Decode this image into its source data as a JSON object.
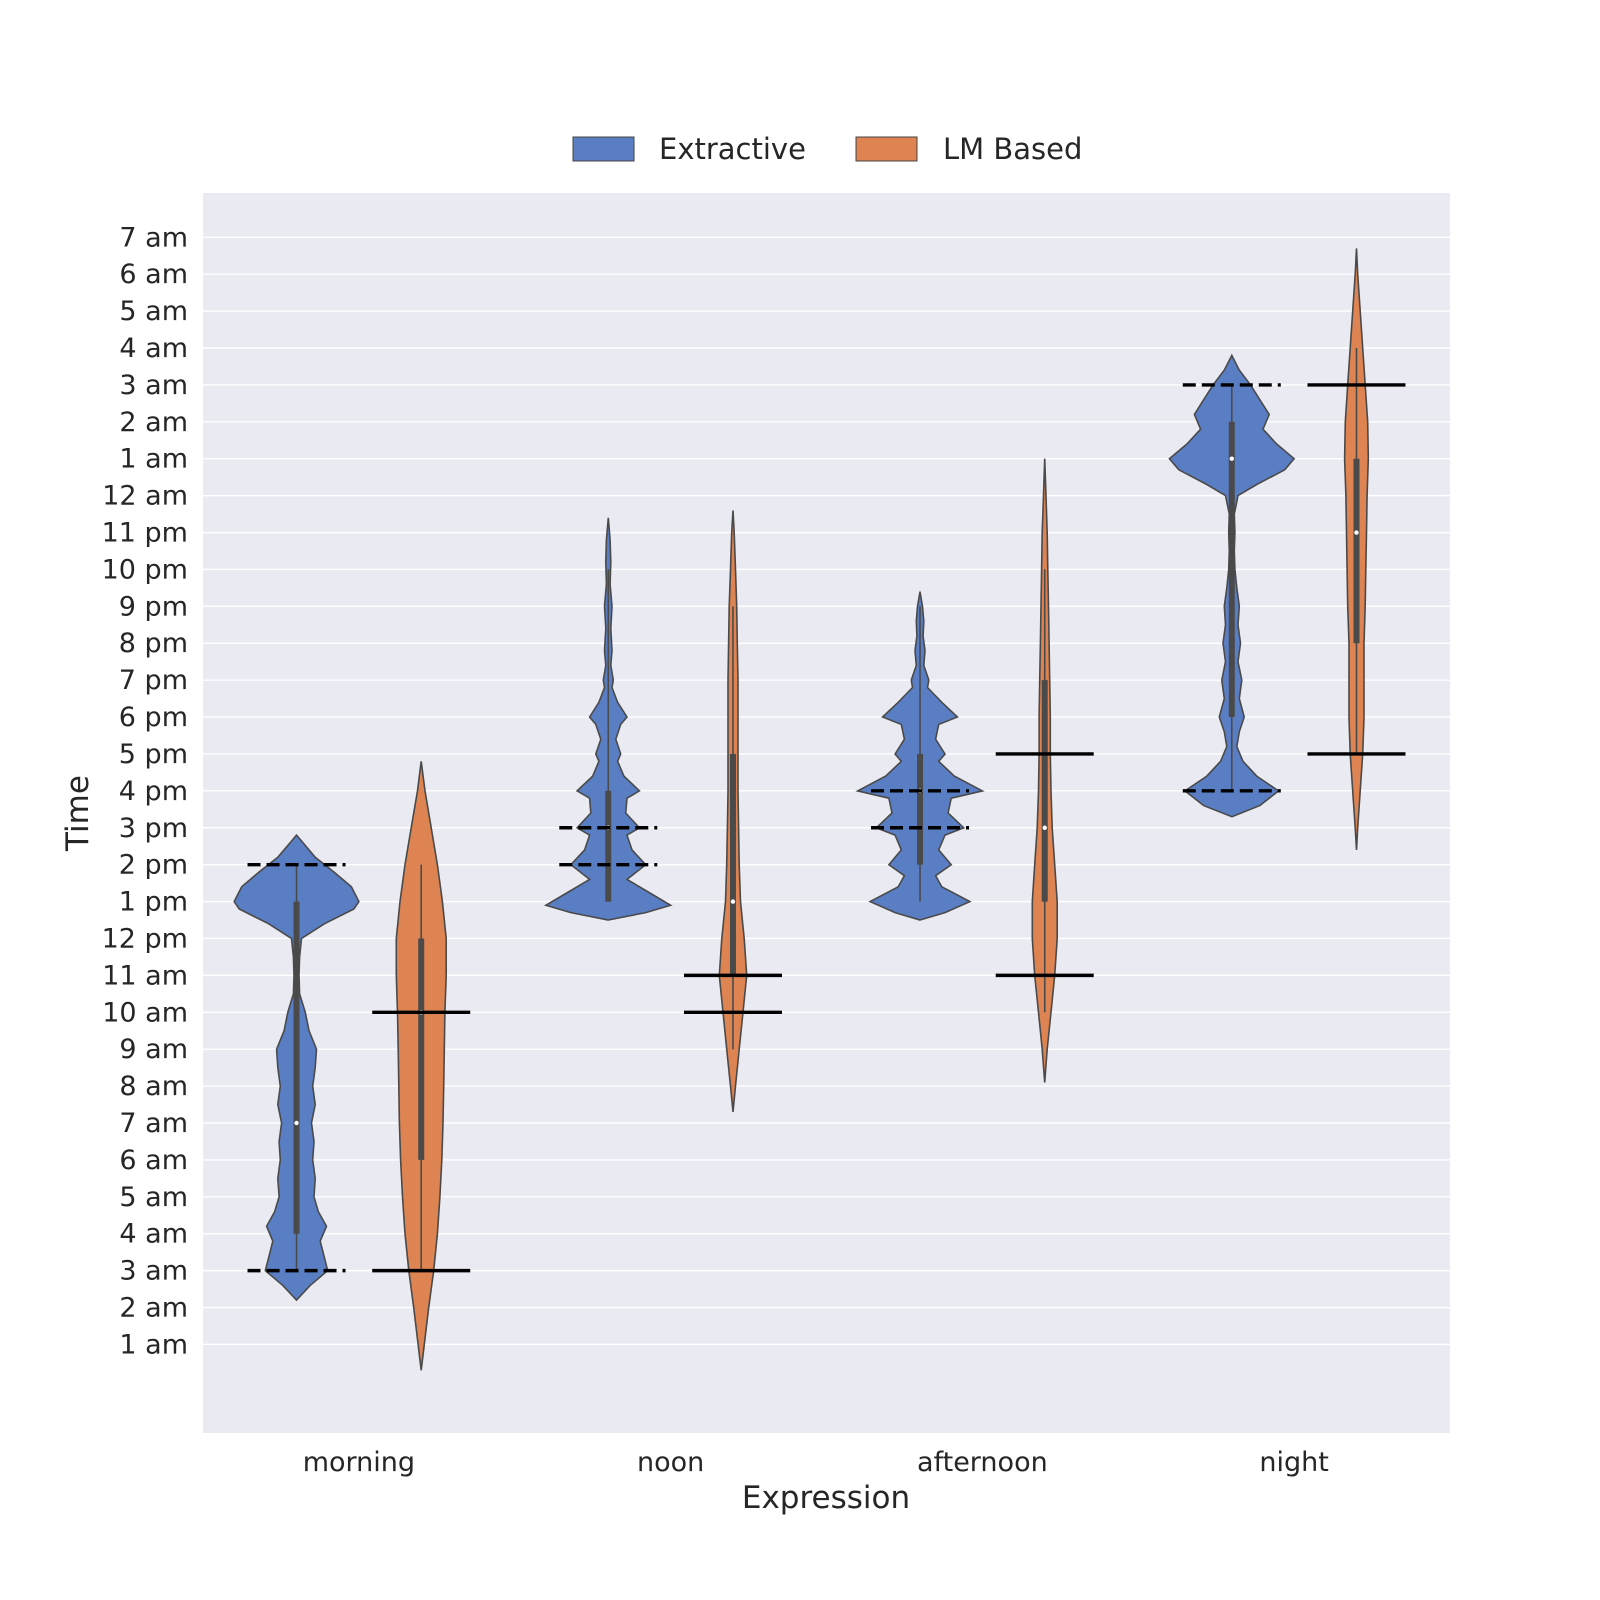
{
  "chart_data": {
    "type": "violin",
    "title": "",
    "xlabel": "Expression",
    "ylabel": "Time",
    "categories": [
      "morning",
      "noon",
      "afternoon",
      "night"
    ],
    "y_tick_labels": [
      "1 am",
      "2 am",
      "3 am",
      "4 am",
      "5 am",
      "6 am",
      "7 am",
      "8 am",
      "9 am",
      "10 am",
      "11 am",
      "12 pm",
      "1 pm",
      "2 pm",
      "3 pm",
      "4 pm",
      "5 pm",
      "6 pm",
      "7 pm",
      "8 pm",
      "9 pm",
      "10 pm",
      "11 pm",
      "12 am",
      "1 am",
      "2 am",
      "3 am",
      "4 am",
      "5 am",
      "6 am",
      "7 am"
    ],
    "y_unit": "hours after midnight of the day, ticks shown from 1 am (1) to 7 am next day (31)",
    "ylim": [
      -1.4,
      32.2
    ],
    "grid": true,
    "legend_position": "top-center",
    "series": [
      {
        "name": "Extractive",
        "color": "#5a7ec4",
        "violins": [
          {
            "category": "morning",
            "median": 7,
            "q1": 4,
            "q3": 13,
            "whisker_low": 3,
            "whisker_high": 14,
            "reference_lines": [
              14,
              3
            ],
            "reference_style": "dashed",
            "profile": [
              [
                2.2,
                0.0
              ],
              [
                2.6,
                0.22
              ],
              [
                3.0,
                0.5
              ],
              [
                3.4,
                0.44
              ],
              [
                3.8,
                0.38
              ],
              [
                4.2,
                0.48
              ],
              [
                4.6,
                0.35
              ],
              [
                5.0,
                0.28
              ],
              [
                5.5,
                0.3
              ],
              [
                6.0,
                0.26
              ],
              [
                6.5,
                0.28
              ],
              [
                7.0,
                0.24
              ],
              [
                7.5,
                0.3
              ],
              [
                8.0,
                0.26
              ],
              [
                8.5,
                0.3
              ],
              [
                9.0,
                0.32
              ],
              [
                9.5,
                0.2
              ],
              [
                10.0,
                0.14
              ],
              [
                10.5,
                0.05
              ],
              [
                11.0,
                0.04
              ],
              [
                11.5,
                0.05
              ],
              [
                12.0,
                0.08
              ],
              [
                12.4,
                0.45
              ],
              [
                12.8,
                0.92
              ],
              [
                13.0,
                1.0
              ],
              [
                13.4,
                0.88
              ],
              [
                13.8,
                0.6
              ],
              [
                14.2,
                0.3
              ],
              [
                14.6,
                0.1
              ],
              [
                14.8,
                0.0
              ]
            ]
          },
          {
            "category": "noon",
            "median": 15,
            "q1": 13,
            "q3": 16,
            "whisker_low": 13,
            "whisker_high": 22,
            "reference_lines": [
              15,
              14
            ],
            "reference_style": "dashed",
            "profile": [
              [
                12.5,
                0.0
              ],
              [
                12.7,
                0.6
              ],
              [
                12.9,
                1.0
              ],
              [
                13.3,
                0.6
              ],
              [
                13.6,
                0.3
              ],
              [
                14.0,
                0.6
              ],
              [
                14.4,
                0.38
              ],
              [
                14.8,
                0.3
              ],
              [
                15.0,
                0.5
              ],
              [
                15.4,
                0.28
              ],
              [
                15.8,
                0.3
              ],
              [
                16.0,
                0.5
              ],
              [
                16.4,
                0.25
              ],
              [
                16.8,
                0.15
              ],
              [
                17.0,
                0.2
              ],
              [
                17.4,
                0.12
              ],
              [
                17.8,
                0.2
              ],
              [
                18.0,
                0.3
              ],
              [
                18.4,
                0.15
              ],
              [
                18.8,
                0.06
              ],
              [
                19.0,
                0.08
              ],
              [
                19.4,
                0.04
              ],
              [
                19.8,
                0.06
              ],
              [
                20.4,
                0.04
              ],
              [
                21.0,
                0.06
              ],
              [
                21.6,
                0.03
              ],
              [
                22.2,
                0.04
              ],
              [
                22.8,
                0.03
              ],
              [
                23.4,
                0.0
              ]
            ]
          },
          {
            "category": "afternoon",
            "median": 16,
            "q1": 14,
            "q3": 17,
            "whisker_low": 13,
            "whisker_high": 21,
            "reference_lines": [
              16,
              15
            ],
            "reference_style": "dashed",
            "profile": [
              [
                12.5,
                0.0
              ],
              [
                12.7,
                0.4
              ],
              [
                13.0,
                0.8
              ],
              [
                13.4,
                0.35
              ],
              [
                13.7,
                0.25
              ],
              [
                14.0,
                0.5
              ],
              [
                14.4,
                0.3
              ],
              [
                14.8,
                0.4
              ],
              [
                15.0,
                0.7
              ],
              [
                15.4,
                0.45
              ],
              [
                15.8,
                0.5
              ],
              [
                16.0,
                1.0
              ],
              [
                16.4,
                0.55
              ],
              [
                16.8,
                0.3
              ],
              [
                17.0,
                0.4
              ],
              [
                17.4,
                0.25
              ],
              [
                17.8,
                0.3
              ],
              [
                18.0,
                0.6
              ],
              [
                18.4,
                0.35
              ],
              [
                18.8,
                0.12
              ],
              [
                19.0,
                0.14
              ],
              [
                19.4,
                0.06
              ],
              [
                19.8,
                0.08
              ],
              [
                20.2,
                0.05
              ],
              [
                20.6,
                0.06
              ],
              [
                21.0,
                0.04
              ],
              [
                21.4,
                0.0
              ]
            ]
          },
          {
            "category": "night",
            "median": 25,
            "q1": 18,
            "q3": 26,
            "whisker_low": 16,
            "whisker_high": 27,
            "reference_lines": [
              27,
              16
            ],
            "reference_style": "dashed",
            "profile": [
              [
                15.3,
                0.0
              ],
              [
                15.6,
                0.45
              ],
              [
                16.0,
                0.75
              ],
              [
                16.4,
                0.4
              ],
              [
                16.8,
                0.18
              ],
              [
                17.2,
                0.08
              ],
              [
                17.6,
                0.12
              ],
              [
                18.0,
                0.2
              ],
              [
                18.5,
                0.12
              ],
              [
                19.0,
                0.16
              ],
              [
                19.5,
                0.1
              ],
              [
                20.0,
                0.14
              ],
              [
                20.5,
                0.1
              ],
              [
                21.0,
                0.12
              ],
              [
                21.5,
                0.08
              ],
              [
                22.0,
                0.05
              ],
              [
                22.5,
                0.04
              ],
              [
                23.0,
                0.05
              ],
              [
                23.5,
                0.04
              ],
              [
                24.0,
                0.1
              ],
              [
                24.3,
                0.4
              ],
              [
                24.7,
                0.85
              ],
              [
                25.0,
                1.0
              ],
              [
                25.4,
                0.72
              ],
              [
                25.8,
                0.5
              ],
              [
                26.2,
                0.6
              ],
              [
                26.6,
                0.45
              ],
              [
                27.0,
                0.3
              ],
              [
                27.4,
                0.12
              ],
              [
                27.8,
                0.0
              ]
            ]
          }
        ]
      },
      {
        "name": "LM Based",
        "color": "#dd8452",
        "violins": [
          {
            "category": "morning",
            "median": 10,
            "q1": 6,
            "q3": 12,
            "whisker_low": 3,
            "whisker_high": 14,
            "reference_lines": [
              10,
              3
            ],
            "reference_style": "solid",
            "profile": [
              [
                0.3,
                0.0
              ],
              [
                1.0,
                0.05
              ],
              [
                2.0,
                0.12
              ],
              [
                3.0,
                0.2
              ],
              [
                4.0,
                0.26
              ],
              [
                5.0,
                0.3
              ],
              [
                6.0,
                0.33
              ],
              [
                7.0,
                0.35
              ],
              [
                8.0,
                0.36
              ],
              [
                9.0,
                0.37
              ],
              [
                10.0,
                0.38
              ],
              [
                11.0,
                0.4
              ],
              [
                12.0,
                0.4
              ],
              [
                13.0,
                0.34
              ],
              [
                14.0,
                0.26
              ],
              [
                15.0,
                0.16
              ],
              [
                16.0,
                0.06
              ],
              [
                16.8,
                0.0
              ]
            ]
          },
          {
            "category": "noon",
            "median": 13,
            "q1": 11,
            "q3": 17,
            "whisker_low": 9,
            "whisker_high": 21,
            "reference_lines": [
              11,
              10
            ],
            "reference_style": "solid",
            "profile": [
              [
                7.3,
                0.0
              ],
              [
                8.0,
                0.04
              ],
              [
                9.0,
                0.1
              ],
              [
                10.0,
                0.16
              ],
              [
                11.0,
                0.22
              ],
              [
                12.0,
                0.18
              ],
              [
                13.0,
                0.12
              ],
              [
                14.0,
                0.1
              ],
              [
                15.0,
                0.09
              ],
              [
                16.0,
                0.08
              ],
              [
                17.0,
                0.08
              ],
              [
                18.0,
                0.08
              ],
              [
                19.0,
                0.08
              ],
              [
                20.0,
                0.07
              ],
              [
                21.0,
                0.06
              ],
              [
                22.0,
                0.04
              ],
              [
                23.0,
                0.02
              ],
              [
                23.6,
                0.0
              ]
            ]
          },
          {
            "category": "afternoon",
            "median": 15,
            "q1": 13,
            "q3": 19,
            "whisker_low": 10,
            "whisker_high": 22,
            "reference_lines": [
              17,
              11
            ],
            "reference_style": "solid",
            "profile": [
              [
                8.1,
                0.0
              ],
              [
                9.0,
                0.04
              ],
              [
                10.0,
                0.1
              ],
              [
                11.0,
                0.16
              ],
              [
                12.0,
                0.2
              ],
              [
                13.0,
                0.2
              ],
              [
                14.0,
                0.16
              ],
              [
                15.0,
                0.12
              ],
              [
                16.0,
                0.1
              ],
              [
                17.0,
                0.09
              ],
              [
                18.0,
                0.09
              ],
              [
                19.0,
                0.08
              ],
              [
                20.0,
                0.07
              ],
              [
                21.0,
                0.06
              ],
              [
                22.0,
                0.05
              ],
              [
                23.0,
                0.04
              ],
              [
                24.0,
                0.02
              ],
              [
                25.0,
                0.0
              ]
            ]
          },
          {
            "category": "night",
            "median": 23,
            "q1": 20,
            "q3": 25,
            "whisker_low": 17,
            "whisker_high": 28,
            "reference_lines": [
              27,
              17
            ],
            "reference_style": "solid",
            "profile": [
              [
                14.4,
                0.0
              ],
              [
                15.0,
                0.02
              ],
              [
                16.0,
                0.06
              ],
              [
                17.0,
                0.1
              ],
              [
                18.0,
                0.12
              ],
              [
                19.0,
                0.12
              ],
              [
                20.0,
                0.12
              ],
              [
                21.0,
                0.14
              ],
              [
                22.0,
                0.15
              ],
              [
                23.0,
                0.16
              ],
              [
                24.0,
                0.17
              ],
              [
                25.0,
                0.19
              ],
              [
                26.0,
                0.18
              ],
              [
                27.0,
                0.14
              ],
              [
                28.0,
                0.1
              ],
              [
                29.0,
                0.06
              ],
              [
                30.0,
                0.02
              ],
              [
                30.7,
                0.0
              ]
            ]
          }
        ]
      }
    ]
  }
}
